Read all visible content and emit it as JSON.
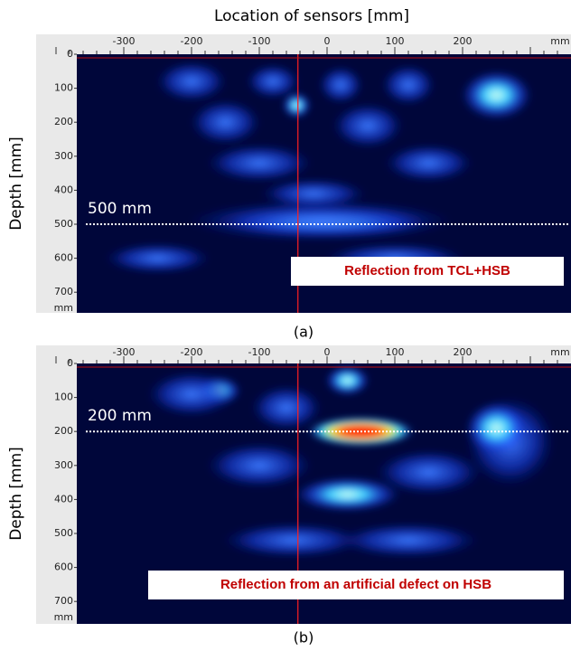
{
  "figure": {
    "x_axis_title": "Location of sensors [mm]",
    "panels": [
      {
        "y_axis_title": "Depth [mm]",
        "x_tick_labels": [
          "-300",
          "-200",
          "-100",
          "0",
          "100",
          "200",
          "mm"
        ],
        "y_tick_labels": [
          "0",
          "100",
          "200",
          "300",
          "400",
          "500",
          "600",
          "700",
          "mm"
        ],
        "depth_marker": "500 mm",
        "annotation": "Reflection from TCL+HSB",
        "caption": "(a)"
      },
      {
        "y_axis_title": "Depth [mm]",
        "x_tick_labels": [
          "-300",
          "-200",
          "-100",
          "0",
          "100",
          "200",
          "mm"
        ],
        "y_tick_labels": [
          "0",
          "100",
          "200",
          "300",
          "400",
          "500",
          "600",
          "700",
          "mm"
        ],
        "depth_marker": "200 mm",
        "annotation": "Reflection from an artificial defect on HSB",
        "caption": "(b)"
      }
    ]
  }
}
